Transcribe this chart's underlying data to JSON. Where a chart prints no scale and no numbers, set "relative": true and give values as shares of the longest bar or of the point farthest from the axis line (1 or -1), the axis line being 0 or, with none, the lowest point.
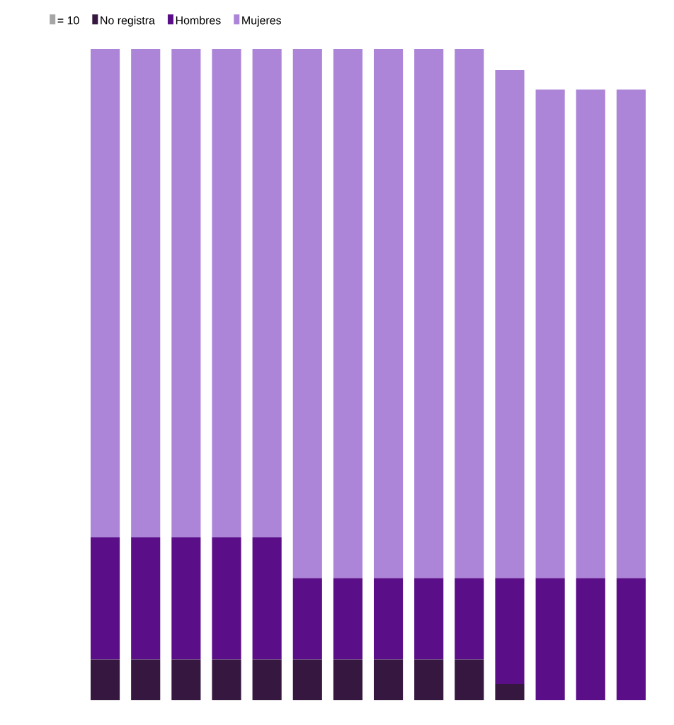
{
  "chart_data": {
    "type": "bar",
    "stacked": true,
    "relative": true,
    "legend": "top left",
    "annotations": [
      "= 10"
    ],
    "categories": [
      null,
      null,
      null,
      null,
      null,
      null,
      null,
      null,
      null,
      null,
      null,
      null,
      null,
      null
    ],
    "series": [
      {
        "name": "No registra",
        "color": "#35173f",
        "values": [
          0.0625,
          0.0625,
          0.0625,
          0.0625,
          0.0625,
          0.0625,
          0.0625,
          0.0625,
          0.0625,
          0.0625,
          0.025,
          0,
          0,
          0
        ]
      },
      {
        "name": "Hombres",
        "color": "#5a0e87",
        "values": [
          0.1875,
          0.1875,
          0.1875,
          0.1875,
          0.1875,
          0.125,
          0.125,
          0.125,
          0.125,
          0.125,
          0.1625,
          0.1875,
          0.1875,
          0.1875
        ]
      },
      {
        "name": "Mujeres",
        "color": "#ad85d8",
        "values": [
          0.75,
          0.75,
          0.75,
          0.75,
          0.75,
          0.8125,
          0.8125,
          0.8125,
          0.8125,
          0.8125,
          0.78,
          0.75,
          0.75,
          0.75
        ]
      }
    ]
  }
}
